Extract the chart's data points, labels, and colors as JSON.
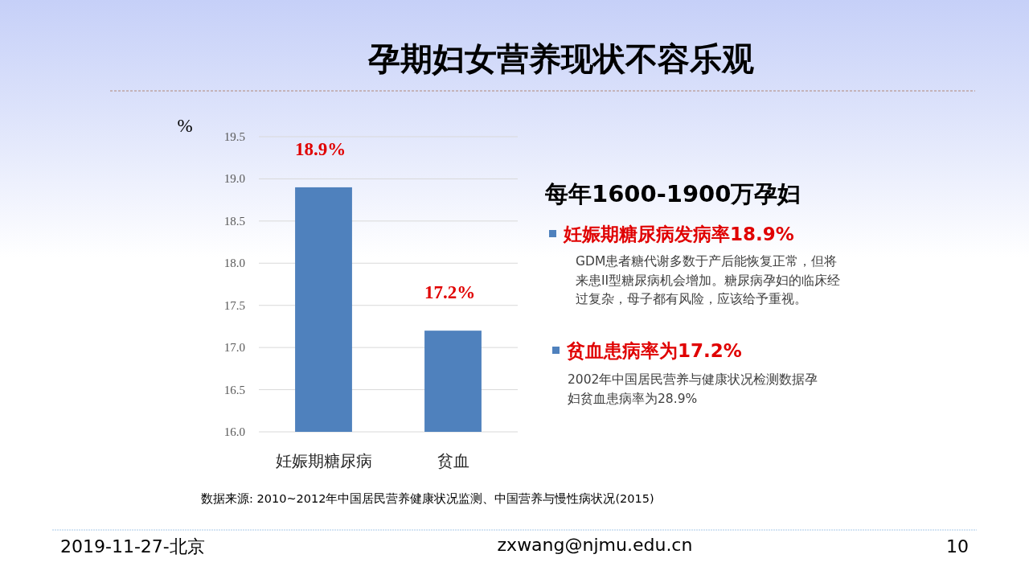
{
  "chart_data": {
    "type": "bar",
    "title": "孕期妇女营养现状不容乐观",
    "ylabel": "%",
    "categories": [
      "妊娠期糖尿病",
      "贫血"
    ],
    "values": [
      18.9,
      17.2
    ],
    "color": "#4f81bd",
    "value_labels": [
      "18.9%",
      "17.2%"
    ],
    "ylim": [
      16,
      19.5
    ],
    "yticks": [
      {
        "value": 16,
        "label": "16.0"
      },
      {
        "value": 16.5,
        "label": "16.5"
      },
      {
        "value": 17,
        "label": "17.0"
      },
      {
        "value": 17.5,
        "label": "17.5"
      },
      {
        "value": 18,
        "label": "18.0"
      },
      {
        "value": 18.5,
        "label": "18.5"
      },
      {
        "value": 19,
        "label": "19.0"
      },
      {
        "value": 19.5,
        "label": "19.5"
      }
    ],
    "grid": "y",
    "annotations": [
      "每年1600-1900万孕妇",
      "妊娠期糖尿病发病率18.9%",
      "GDM患者糖代谢多数于产后能恢复正常，但将来患II型糖尿病机会增加。糖尿病孕妇的临床经过复杂，母子都有风险，应该给予重视。",
      "贫血患病率为17.2%",
      "2002年中国居民营养与健康状况检测数据孕妇贫血患病率为28.9%",
      "数据来源: 2010~2012年中国居民营养健康状况监测、中国营养与慢性病状况(2015)",
      "2019-11-27-北京",
      "zxwang@njmu.edu.cn",
      "10"
    ]
  }
}
